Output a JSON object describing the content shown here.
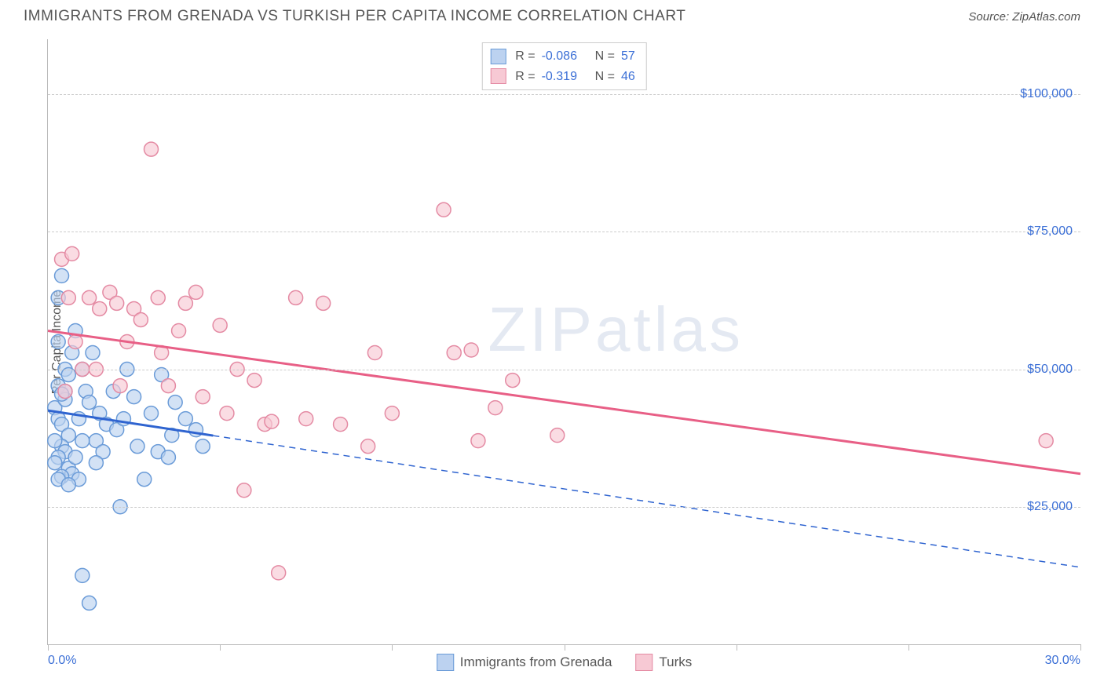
{
  "title": "IMMIGRANTS FROM GRENADA VS TURKISH PER CAPITA INCOME CORRELATION CHART",
  "source_label": "Source:",
  "source_value": "ZipAtlas.com",
  "ylabel": "Per Capita Income",
  "watermark_a": "ZIP",
  "watermark_b": "atlas",
  "chart": {
    "type": "scatter",
    "xlim": [
      0,
      30
    ],
    "ylim": [
      0,
      110000
    ],
    "x_tick_positions": [
      0,
      5,
      10,
      15,
      20,
      25,
      30
    ],
    "x_tick_labels_shown": {
      "0": "0.0%",
      "30": "30.0%"
    },
    "y_gridlines": [
      25000,
      50000,
      75000,
      100000
    ],
    "y_tick_labels": {
      "25000": "$25,000",
      "50000": "$50,000",
      "75000": "$75,000",
      "100000": "$100,000"
    },
    "background_color": "#ffffff",
    "grid_color": "#cccccc",
    "axis_color": "#bbbbbb",
    "tick_label_color": "#3b6fd6",
    "marker_radius": 9,
    "marker_stroke_width": 1.5,
    "trend_line_width": 3
  },
  "legend_top": {
    "rows": [
      {
        "swatch_fill": "#bcd2f0",
        "swatch_stroke": "#6a9bd8",
        "r_label": "R =",
        "r": "-0.086",
        "n_label": "N =",
        "n": "57"
      },
      {
        "swatch_fill": "#f7c9d4",
        "swatch_stroke": "#e48aa3",
        "r_label": "R =",
        "r": "-0.319",
        "n_label": "N =",
        "n": "46"
      }
    ]
  },
  "legend_bottom": {
    "items": [
      {
        "swatch_fill": "#bcd2f0",
        "swatch_stroke": "#6a9bd8",
        "label": "Immigrants from Grenada"
      },
      {
        "swatch_fill": "#f7c9d4",
        "swatch_stroke": "#e48aa3",
        "label": "Turks"
      }
    ]
  },
  "series": [
    {
      "name": "Immigrants from Grenada",
      "fill": "#bcd2f0",
      "stroke": "#6a9bd8",
      "trend_color": "#2f64d0",
      "trend_solid_x_max": 4.8,
      "trend": {
        "x1": 0,
        "y1": 42500,
        "x2": 30,
        "y2": 14000
      },
      "points": [
        [
          0.3,
          63000
        ],
        [
          0.4,
          67000
        ],
        [
          0.3,
          47000
        ],
        [
          0.5,
          46000
        ],
        [
          0.2,
          43000
        ],
        [
          0.3,
          41000
        ],
        [
          0.4,
          40000
        ],
        [
          0.6,
          38000
        ],
        [
          0.4,
          36000
        ],
        [
          0.5,
          35000
        ],
        [
          0.3,
          34000
        ],
        [
          0.2,
          33000
        ],
        [
          0.6,
          32000
        ],
        [
          0.7,
          31000
        ],
        [
          0.4,
          30500
        ],
        [
          0.9,
          30000
        ],
        [
          1.1,
          46000
        ],
        [
          1.2,
          44000
        ],
        [
          1.0,
          50000
        ],
        [
          1.3,
          53000
        ],
        [
          1.5,
          42000
        ],
        [
          1.4,
          37000
        ],
        [
          1.6,
          35000
        ],
        [
          1.7,
          40000
        ],
        [
          1.9,
          46000
        ],
        [
          2.0,
          39000
        ],
        [
          2.2,
          41000
        ],
        [
          2.3,
          50000
        ],
        [
          2.5,
          45000
        ],
        [
          2.6,
          36000
        ],
        [
          2.8,
          30000
        ],
        [
          3.0,
          42000
        ],
        [
          3.2,
          35000
        ],
        [
          3.3,
          49000
        ],
        [
          3.5,
          34000
        ],
        [
          3.6,
          38000
        ],
        [
          3.7,
          44000
        ],
        [
          4.0,
          41000
        ],
        [
          4.3,
          39000
        ],
        [
          4.5,
          36000
        ],
        [
          2.1,
          25000
        ],
        [
          1.0,
          12500
        ],
        [
          1.2,
          7500
        ],
        [
          0.5,
          50000
        ],
        [
          0.7,
          53000
        ],
        [
          0.3,
          55000
        ],
        [
          0.8,
          57000
        ],
        [
          0.5,
          44500
        ],
        [
          0.9,
          41000
        ],
        [
          1.4,
          33000
        ],
        [
          1.0,
          37000
        ],
        [
          0.6,
          49000
        ],
        [
          0.4,
          45500
        ],
        [
          0.8,
          34000
        ],
        [
          0.2,
          37000
        ],
        [
          0.3,
          30000
        ],
        [
          0.6,
          29000
        ]
      ]
    },
    {
      "name": "Turks",
      "fill": "#f7c9d4",
      "stroke": "#e48aa3",
      "trend_color": "#e85f86",
      "trend_solid_x_max": 30,
      "trend": {
        "x1": 0,
        "y1": 57000,
        "x2": 30,
        "y2": 31000
      },
      "points": [
        [
          0.4,
          70000
        ],
        [
          0.7,
          71000
        ],
        [
          0.6,
          63000
        ],
        [
          0.8,
          55000
        ],
        [
          1.0,
          50000
        ],
        [
          1.2,
          63000
        ],
        [
          1.5,
          61000
        ],
        [
          1.4,
          50000
        ],
        [
          1.8,
          64000
        ],
        [
          2.0,
          62000
        ],
        [
          2.1,
          47000
        ],
        [
          2.3,
          55000
        ],
        [
          2.5,
          61000
        ],
        [
          2.7,
          59000
        ],
        [
          3.0,
          90000
        ],
        [
          3.2,
          63000
        ],
        [
          3.3,
          53000
        ],
        [
          3.5,
          47000
        ],
        [
          3.8,
          57000
        ],
        [
          4.0,
          62000
        ],
        [
          4.3,
          64000
        ],
        [
          4.5,
          45000
        ],
        [
          5.0,
          58000
        ],
        [
          5.2,
          42000
        ],
        [
          5.5,
          50000
        ],
        [
          5.7,
          28000
        ],
        [
          6.0,
          48000
        ],
        [
          6.3,
          40000
        ],
        [
          6.5,
          40500
        ],
        [
          7.2,
          63000
        ],
        [
          7.5,
          41000
        ],
        [
          8.0,
          62000
        ],
        [
          8.5,
          40000
        ],
        [
          9.3,
          36000
        ],
        [
          9.5,
          53000
        ],
        [
          10.0,
          42000
        ],
        [
          11.5,
          79000
        ],
        [
          11.8,
          53000
        ],
        [
          12.3,
          53500
        ],
        [
          12.5,
          37000
        ],
        [
          13.0,
          43000
        ],
        [
          13.5,
          48000
        ],
        [
          14.8,
          38000
        ],
        [
          6.7,
          13000
        ],
        [
          29.0,
          37000
        ],
        [
          0.5,
          46000
        ]
      ]
    }
  ]
}
